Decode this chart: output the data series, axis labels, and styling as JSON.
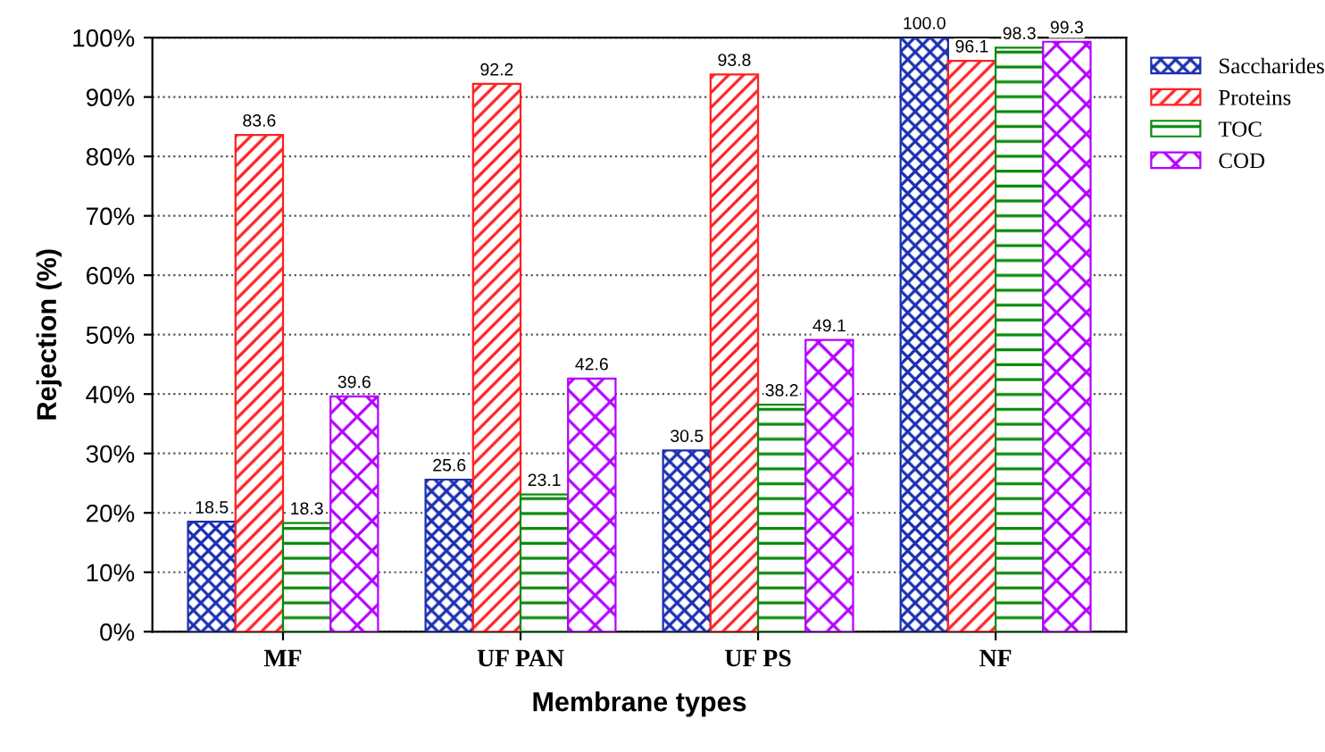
{
  "chart_data": {
    "type": "bar",
    "xlabel": "Membrane types",
    "ylabel": "Rejection (%)",
    "categories": [
      "MF",
      "UF PAN",
      "UF PS",
      "NF"
    ],
    "series": [
      {
        "name": "Saccharides",
        "color": "#1a2fb0",
        "values": [
          18.5,
          25.6,
          30.5,
          100.0
        ],
        "value_labels": [
          "18.5",
          "25.6",
          "30.5",
          "100.0"
        ]
      },
      {
        "name": "Proteins",
        "color": "#ff2020",
        "values": [
          83.6,
          92.2,
          93.8,
          96.1
        ],
        "value_labels": [
          "83.6",
          "92.2",
          "93.8",
          "96.1"
        ]
      },
      {
        "name": "TOC",
        "color": "#0a8a0a",
        "values": [
          18.3,
          23.1,
          38.2,
          98.3
        ],
        "value_labels": [
          "18.3",
          "23.1",
          "38.2",
          "98.3"
        ]
      },
      {
        "name": "COD",
        "color": "#b400ff",
        "values": [
          39.6,
          42.6,
          49.1,
          99.3
        ],
        "value_labels": [
          "39.6",
          "42.6",
          "49.1",
          "99.3"
        ]
      }
    ],
    "ylim": [
      0,
      100
    ],
    "yticks": [
      {
        "value": 0,
        "label": "0%"
      },
      {
        "value": 10,
        "label": "10%"
      },
      {
        "value": 20,
        "label": "20%"
      },
      {
        "value": 30,
        "label": "30%"
      },
      {
        "value": 40,
        "label": "40%"
      },
      {
        "value": 50,
        "label": "50%"
      },
      {
        "value": 60,
        "label": "60%"
      },
      {
        "value": 70,
        "label": "70%"
      },
      {
        "value": 80,
        "label": "80%"
      },
      {
        "value": 90,
        "label": "90%"
      },
      {
        "value": 100,
        "label": "100%"
      }
    ],
    "grid": "y",
    "legend": "top right"
  }
}
